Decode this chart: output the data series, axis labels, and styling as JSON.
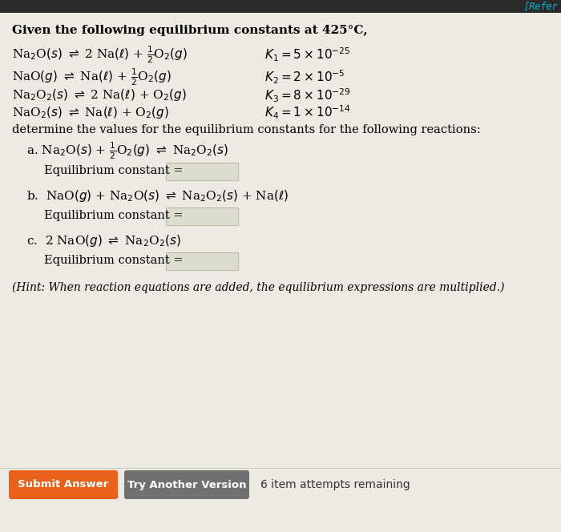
{
  "bg_color": "#edeae3",
  "top_bar_color": "#2a2a2a",
  "title_text": "Given the following equilibrium constants at 425°C,",
  "determine_text": "determine the values for the equilibrium constants for the following reactions:",
  "hint_text": "(Hint: When reaction equations are added, the equilibrium expressions are multiplied.)",
  "btn1_text": "Submit Answer",
  "btn1_color": "#e8621a",
  "btn2_text": "Try Another Version",
  "btn2_color": "#707070",
  "attempts_text": "6 item attempts remaining",
  "top_banner_text": "[Refer",
  "top_banner_color": "#00b8d4",
  "input_box_color": "#ddddd0",
  "input_box_border": "#bbbbaa"
}
